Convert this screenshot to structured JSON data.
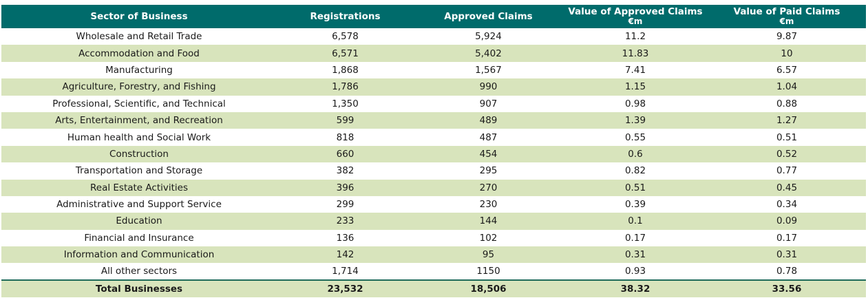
{
  "header": {
    "sector": "Sector of Business",
    "registrations": "Registrations",
    "approved_claims": "Approved Claims",
    "value_approved": "Value of Approved Claims",
    "value_approved_unit": "€m",
    "value_paid": "Value of Paid Claims",
    "value_paid_unit": "€m"
  },
  "rows": [
    {
      "sector": "Wholesale and Retail Trade",
      "registrations": "6,578",
      "approved": "5,924",
      "value_approved": "11.2",
      "value_paid": "9.87"
    },
    {
      "sector": "Accommodation and Food",
      "registrations": "6,571",
      "approved": "5,402",
      "value_approved": "11.83",
      "value_paid": "10"
    },
    {
      "sector": "Manufacturing",
      "registrations": "1,868",
      "approved": "1,567",
      "value_approved": "7.41",
      "value_paid": "6.57"
    },
    {
      "sector": "Agriculture, Forestry, and Fishing",
      "registrations": "1,786",
      "approved": "990",
      "value_approved": "1.15",
      "value_paid": "1.04"
    },
    {
      "sector": "Professional, Scientific, and Technical",
      "registrations": "1,350",
      "approved": "907",
      "value_approved": "0.98",
      "value_paid": "0.88"
    },
    {
      "sector": "Arts, Entertainment, and Recreation",
      "registrations": "599",
      "approved": "489",
      "value_approved": "1.39",
      "value_paid": "1.27"
    },
    {
      "sector": "Human health and Social Work",
      "registrations": "818",
      "approved": "487",
      "value_approved": "0.55",
      "value_paid": "0.51"
    },
    {
      "sector": "Construction",
      "registrations": "660",
      "approved": "454",
      "value_approved": "0.6",
      "value_paid": "0.52"
    },
    {
      "sector": "Transportation and Storage",
      "registrations": "382",
      "approved": "295",
      "value_approved": "0.82",
      "value_paid": "0.77"
    },
    {
      "sector": "Real Estate Activities",
      "registrations": "396",
      "approved": "270",
      "value_approved": "0.51",
      "value_paid": "0.45"
    },
    {
      "sector": "Administrative and Support Service",
      "registrations": "299",
      "approved": "230",
      "value_approved": "0.39",
      "value_paid": "0.34"
    },
    {
      "sector": "Education",
      "registrations": "233",
      "approved": "144",
      "value_approved": "0.1",
      "value_paid": "0.09"
    },
    {
      "sector": "Financial and Insurance",
      "registrations": "136",
      "approved": "102",
      "value_approved": "0.17",
      "value_paid": "0.17"
    },
    {
      "sector": "Information and Communication",
      "registrations": "142",
      "approved": "95",
      "value_approved": "0.31",
      "value_paid": "0.31"
    },
    {
      "sector": "All other sectors",
      "registrations": "1,714",
      "approved": "1150",
      "value_approved": "0.93",
      "value_paid": "0.78"
    }
  ],
  "total": {
    "sector": "Total Businesses",
    "registrations": "23,532",
    "approved": "18,506",
    "value_approved": "38.32",
    "value_paid": "33.56"
  },
  "colors": {
    "header_bg": "#006b6b",
    "stripe_bg": "#d8e4bc",
    "total_rule": "#1f6b5a"
  }
}
